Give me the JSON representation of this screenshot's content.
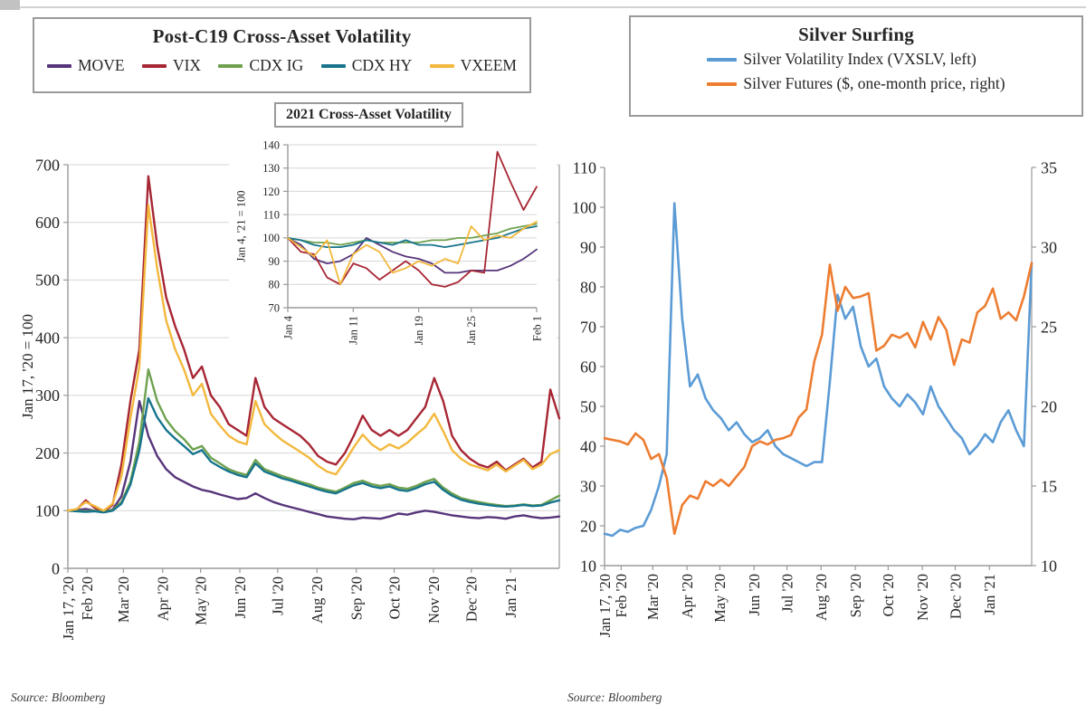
{
  "sources": {
    "left": "Source: Bloomberg",
    "right": "Source: Bloomberg"
  },
  "chart_data": [
    {
      "type": "line",
      "title": "Post-C19 Cross-Asset Volatility",
      "xlabel": "",
      "ylabel": "Jan 17, '20 = 100",
      "ylim": [
        0,
        700
      ],
      "y_ticks": [
        0,
        100,
        200,
        300,
        400,
        500,
        600,
        700
      ],
      "grid": true,
      "legend_position": "top",
      "x_labels": [
        "Jan 17, '20",
        "Feb '20",
        "Mar '20",
        "Apr '20",
        "May '20",
        "Jun '20",
        "Jul '20",
        "Aug '20",
        "Sep '20",
        "Oct '20",
        "Nov '20",
        "Dec '20",
        "Jan '21"
      ],
      "x_tick_pos": [
        0,
        0.039,
        0.113,
        0.193,
        0.27,
        0.35,
        0.427,
        0.507,
        0.587,
        0.664,
        0.744,
        0.821,
        0.901
      ],
      "series": [
        {
          "name": "MOVE",
          "color": "#56357A",
          "values": [
            100,
            101,
            103,
            100,
            98,
            102,
            125,
            185,
            290,
            230,
            195,
            172,
            158,
            150,
            142,
            136,
            133,
            128,
            124,
            120,
            122,
            130,
            122,
            115,
            110,
            106,
            102,
            98,
            94,
            90,
            88,
            86,
            85,
            88,
            87,
            86,
            90,
            95,
            93,
            97,
            100,
            98,
            95,
            92,
            90,
            88,
            87,
            89,
            88,
            86,
            90,
            92,
            89,
            87,
            88,
            90
          ]
        },
        {
          "name": "VIX",
          "color": "#A72634",
          "values": [
            100,
            102,
            118,
            105,
            98,
            110,
            180,
            290,
            380,
            680,
            560,
            470,
            420,
            380,
            330,
            350,
            300,
            280,
            250,
            240,
            230,
            330,
            280,
            260,
            250,
            240,
            230,
            215,
            195,
            185,
            180,
            200,
            230,
            265,
            240,
            230,
            240,
            230,
            240,
            260,
            280,
            330,
            290,
            230,
            205,
            190,
            180,
            175,
            185,
            170,
            180,
            190,
            175,
            185,
            310,
            260
          ]
        },
        {
          "name": "CDX IG",
          "color": "#6FA14F",
          "values": [
            100,
            100,
            99,
            100,
            98,
            101,
            115,
            150,
            220,
            345,
            290,
            258,
            238,
            224,
            206,
            212,
            192,
            182,
            172,
            166,
            162,
            188,
            172,
            166,
            160,
            155,
            150,
            146,
            140,
            136,
            133,
            140,
            148,
            152,
            146,
            143,
            146,
            140,
            138,
            143,
            150,
            155,
            140,
            130,
            122,
            118,
            115,
            112,
            110,
            108,
            109,
            111,
            109,
            110,
            118,
            126
          ]
        },
        {
          "name": "CDX HY",
          "color": "#17748C",
          "values": [
            100,
            99,
            98,
            99,
            97,
            100,
            112,
            145,
            205,
            295,
            262,
            240,
            225,
            212,
            198,
            205,
            185,
            176,
            168,
            162,
            158,
            182,
            168,
            162,
            156,
            152,
            147,
            142,
            137,
            133,
            130,
            137,
            144,
            148,
            142,
            139,
            142,
            136,
            134,
            139,
            146,
            150,
            136,
            126,
            119,
            115,
            112,
            110,
            108,
            107,
            108,
            110,
            108,
            109,
            114,
            118
          ]
        },
        {
          "name": "VXEEM",
          "color": "#F3B83D",
          "values": [
            100,
            103,
            115,
            108,
            100,
            112,
            160,
            260,
            350,
            630,
            520,
            430,
            380,
            345,
            300,
            320,
            268,
            248,
            230,
            220,
            215,
            290,
            250,
            235,
            222,
            212,
            202,
            192,
            178,
            168,
            163,
            185,
            210,
            232,
            215,
            205,
            215,
            208,
            218,
            232,
            245,
            268,
            238,
            205,
            190,
            180,
            175,
            170,
            180,
            168,
            178,
            188,
            172,
            180,
            198,
            205
          ]
        }
      ]
    },
    {
      "type": "line",
      "title": "2021 Cross-Asset Volatility",
      "xlabel": "",
      "ylabel": "Jan 4, '21 = 100",
      "ylim": [
        70,
        140
      ],
      "y_ticks": [
        70,
        80,
        90,
        100,
        110,
        120,
        130,
        140
      ],
      "grid": true,
      "x_labels": [
        "Jan 4",
        "Jan 11",
        "Jan 19",
        "Jan 25",
        "Feb 1"
      ],
      "x_tick_pos": [
        0,
        0.263,
        0.526,
        0.737,
        1
      ],
      "series": [
        {
          "name": "MOVE",
          "color": "#56357A",
          "values": [
            100,
            97,
            91,
            89,
            90,
            93,
            100,
            97,
            94,
            92,
            91,
            89,
            85,
            85,
            86,
            86,
            86,
            88,
            91,
            95
          ]
        },
        {
          "name": "VIX",
          "color": "#A72634",
          "values": [
            100,
            94,
            93,
            83,
            80,
            89,
            87,
            82,
            86,
            90,
            86,
            80,
            79,
            81,
            86,
            85,
            137,
            124,
            112,
            122
          ]
        },
        {
          "name": "CDX IG",
          "color": "#6FA14F",
          "values": [
            100,
            99,
            98,
            98,
            97,
            98,
            99,
            98,
            98,
            98,
            98,
            99,
            99,
            100,
            100,
            101,
            102,
            104,
            105,
            106
          ]
        },
        {
          "name": "CDX HY",
          "color": "#17748C",
          "values": [
            100,
            99,
            97,
            96,
            96,
            97,
            99,
            98,
            97,
            99,
            97,
            97,
            96,
            97,
            98,
            99,
            100,
            102,
            104,
            105
          ]
        },
        {
          "name": "VXEEM",
          "color": "#F3B83D",
          "values": [
            100,
            96,
            92,
            99,
            80,
            93,
            97,
            94,
            85,
            87,
            90,
            88,
            91,
            89,
            105,
            99,
            101,
            100,
            104,
            107
          ]
        }
      ]
    },
    {
      "type": "line",
      "title": "Silver Surfing",
      "xlabel": "",
      "ylabel": "",
      "ylim_left": [
        10,
        110
      ],
      "ylim_right": [
        10,
        35
      ],
      "y_ticks_left": [
        10,
        20,
        30,
        40,
        50,
        60,
        70,
        80,
        90,
        100,
        110
      ],
      "y_ticks_right": [
        10,
        15,
        20,
        25,
        30,
        35
      ],
      "grid": false,
      "legend_position": "top",
      "x_labels": [
        "Jan 17, '20",
        "Feb '20",
        "Mar '20",
        "Apr '20",
        "May '20",
        "Jun '20",
        "Jul '20",
        "Aug '20",
        "Sep '20",
        "Oct '20",
        "Nov '20",
        "Dec '20",
        "Jan '21"
      ],
      "x_tick_pos": [
        0,
        0.039,
        0.113,
        0.193,
        0.27,
        0.35,
        0.427,
        0.507,
        0.587,
        0.664,
        0.744,
        0.821,
        0.901
      ],
      "series": [
        {
          "name": "Silver Volatility Index (VXSLV, left)",
          "color": "#5B9BD5",
          "axis": "left",
          "values": [
            18,
            17.5,
            19,
            18.5,
            19.5,
            20,
            24,
            30,
            38,
            101,
            72,
            55,
            58,
            52,
            49,
            47,
            44,
            46,
            43,
            41,
            42,
            44,
            40,
            38,
            37,
            36,
            35,
            36,
            36,
            56,
            78,
            72,
            75,
            65,
            60,
            62,
            55,
            52,
            50,
            53,
            51,
            48,
            55,
            50,
            47,
            44,
            42,
            38,
            40,
            43,
            41,
            46,
            49,
            44,
            40,
            86
          ]
        },
        {
          "name": "Silver Futures ($, one-month price, right)",
          "color": "#ED7D31",
          "axis": "right",
          "values": [
            18,
            17.9,
            17.8,
            17.6,
            18.3,
            17.9,
            16.7,
            17,
            15.5,
            12,
            13.8,
            14.4,
            14.2,
            15.3,
            15,
            15.4,
            15,
            15.6,
            16.2,
            17.5,
            17.8,
            17.6,
            17.9,
            18,
            18.2,
            19.3,
            19.8,
            22.8,
            24.5,
            28.9,
            26,
            27.5,
            26.8,
            26.9,
            27.1,
            23.5,
            23.8,
            24.5,
            24.3,
            24.6,
            23.7,
            25.3,
            24.2,
            25.6,
            24.8,
            22.6,
            24.2,
            24,
            25.9,
            26.3,
            27.4,
            25.5,
            25.9,
            25.4,
            26.9,
            29
          ]
        }
      ]
    }
  ]
}
